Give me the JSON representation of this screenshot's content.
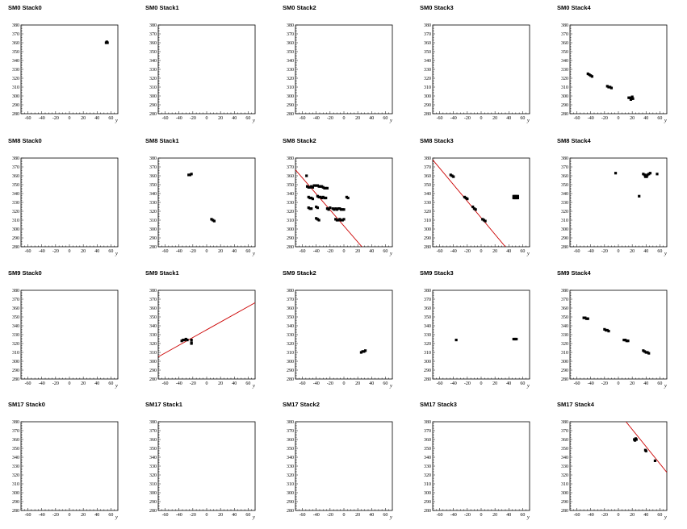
{
  "chart_data": {
    "type": "scatter",
    "layout": "grid",
    "rows": 4,
    "cols": 5,
    "xlabel": "y",
    "xlim": [
      -70,
      70
    ],
    "ylim": [
      280,
      380
    ],
    "x_ticks": [
      -60,
      -40,
      -20,
      0,
      20,
      40,
      60
    ],
    "y_ticks": [
      280,
      290,
      300,
      310,
      320,
      330,
      340,
      350,
      360,
      370,
      380
    ],
    "point_color": "#000000",
    "fit_color": "#cc0000",
    "panels": [
      {
        "title": "SM0 Stack0",
        "points": [
          [
            53,
            360
          ],
          [
            55,
            360
          ],
          [
            54,
            361
          ]
        ],
        "fit": null
      },
      {
        "title": "SM0 Stack1",
        "points": [],
        "fit": null
      },
      {
        "title": "SM0 Stack2",
        "points": [],
        "fit": null
      },
      {
        "title": "SM0 Stack3",
        "points": [],
        "fit": null
      },
      {
        "title": "SM0 Stack4",
        "points": [
          [
            -44,
            325
          ],
          [
            -42,
            324
          ],
          [
            -40,
            323
          ],
          [
            -38,
            322
          ],
          [
            -16,
            311
          ],
          [
            -14,
            310
          ],
          [
            -12,
            310
          ],
          [
            -10,
            309
          ],
          [
            15,
            298
          ],
          [
            17,
            298
          ],
          [
            19,
            297
          ],
          [
            21,
            297
          ],
          [
            20,
            299
          ],
          [
            18,
            296
          ]
        ],
        "fit": null
      },
      {
        "title": "SM8 Stack0",
        "points": [],
        "fit": null
      },
      {
        "title": "SM8 Stack1",
        "points": [
          [
            -26,
            361
          ],
          [
            -24,
            361
          ],
          [
            -22,
            362
          ],
          [
            7,
            311
          ],
          [
            9,
            310
          ],
          [
            11,
            309
          ]
        ],
        "fit": null
      },
      {
        "title": "SM8 Stack2",
        "points": [
          [
            -54,
            360
          ],
          [
            -53,
            348
          ],
          [
            -51,
            347
          ],
          [
            -49,
            347
          ],
          [
            -47,
            348
          ],
          [
            -45,
            347
          ],
          [
            -43,
            349
          ],
          [
            -40,
            349
          ],
          [
            -38,
            349
          ],
          [
            -36,
            348
          ],
          [
            -34,
            348
          ],
          [
            -32,
            348
          ],
          [
            -30,
            347
          ],
          [
            -28,
            346
          ],
          [
            -26,
            346
          ],
          [
            -24,
            346
          ],
          [
            -51,
            336
          ],
          [
            -49,
            335
          ],
          [
            -47,
            335
          ],
          [
            -45,
            334
          ],
          [
            -38,
            337
          ],
          [
            -36,
            336
          ],
          [
            -34,
            336
          ],
          [
            -32,
            335
          ],
          [
            -30,
            336
          ],
          [
            -28,
            335
          ],
          [
            -26,
            335
          ],
          [
            4,
            336
          ],
          [
            6,
            335
          ],
          [
            -51,
            324
          ],
          [
            -49,
            323
          ],
          [
            -47,
            323
          ],
          [
            -40,
            325
          ],
          [
            -38,
            324
          ],
          [
            -24,
            323
          ],
          [
            -22,
            322
          ],
          [
            -20,
            324
          ],
          [
            -16,
            323
          ],
          [
            -14,
            322
          ],
          [
            -12,
            323
          ],
          [
            -10,
            322
          ],
          [
            -8,
            323
          ],
          [
            -6,
            323
          ],
          [
            -4,
            322
          ],
          [
            -2,
            322
          ],
          [
            0,
            322
          ],
          [
            -40,
            312
          ],
          [
            -38,
            311
          ],
          [
            -36,
            310
          ],
          [
            -12,
            311
          ],
          [
            -10,
            310
          ],
          [
            -8,
            310
          ],
          [
            -6,
            311
          ],
          [
            -4,
            310
          ],
          [
            -2,
            310
          ],
          [
            0,
            311
          ]
        ],
        "fit": [
          [
            -70,
            366.7
          ],
          [
            26,
            280
          ]
        ]
      },
      {
        "title": "SM8 Stack3",
        "points": [
          [
            -44,
            361
          ],
          [
            -42,
            360
          ],
          [
            -40,
            359
          ],
          [
            -24,
            336
          ],
          [
            -22,
            335
          ],
          [
            -20,
            334
          ],
          [
            -12,
            325
          ],
          [
            -10,
            323
          ],
          [
            -8,
            322
          ],
          [
            2,
            311
          ],
          [
            4,
            310
          ],
          [
            6,
            309
          ],
          [
            47,
            337
          ],
          [
            49,
            337
          ],
          [
            51,
            337
          ],
          [
            53,
            337
          ],
          [
            47,
            335
          ],
          [
            49,
            335
          ],
          [
            51,
            335
          ],
          [
            53,
            335
          ]
        ],
        "fit": [
          [
            -70,
            378
          ],
          [
            35,
            280
          ]
        ]
      },
      {
        "title": "SM8 Stack4",
        "points": [
          [
            -4,
            363
          ],
          [
            36,
            362
          ],
          [
            38,
            361
          ],
          [
            40,
            360
          ],
          [
            42,
            361
          ],
          [
            44,
            362
          ],
          [
            46,
            363
          ],
          [
            39,
            359
          ],
          [
            41,
            359
          ],
          [
            56,
            362
          ],
          [
            30,
            337
          ]
        ],
        "fit": null
      },
      {
        "title": "SM9 Stack0",
        "points": [],
        "fit": null
      },
      {
        "title": "SM9 Stack1",
        "points": [
          [
            -36,
            323
          ],
          [
            -34,
            324
          ],
          [
            -32,
            324
          ],
          [
            -30,
            325
          ],
          [
            -28,
            324
          ],
          [
            -22,
            324
          ],
          [
            -22,
            321
          ],
          [
            -22,
            320
          ]
        ],
        "fit": [
          [
            -70,
            305
          ],
          [
            70,
            366
          ]
        ]
      },
      {
        "title": "SM9 Stack2",
        "points": [
          [
            25,
            310
          ],
          [
            27,
            311
          ],
          [
            29,
            311
          ],
          [
            31,
            312
          ]
        ],
        "fit": null
      },
      {
        "title": "SM9 Stack3",
        "points": [
          [
            -36,
            324
          ],
          [
            47,
            325
          ],
          [
            49,
            325
          ],
          [
            51,
            325
          ]
        ],
        "fit": null
      },
      {
        "title": "SM9 Stack4",
        "points": [
          [
            -50,
            349
          ],
          [
            -48,
            349
          ],
          [
            -46,
            348
          ],
          [
            -44,
            348
          ],
          [
            -20,
            336
          ],
          [
            -18,
            335
          ],
          [
            -16,
            335
          ],
          [
            -14,
            334
          ],
          [
            8,
            324
          ],
          [
            10,
            324
          ],
          [
            12,
            323
          ],
          [
            14,
            323
          ],
          [
            36,
            312
          ],
          [
            38,
            311
          ],
          [
            40,
            310
          ],
          [
            42,
            310
          ],
          [
            44,
            309
          ]
        ],
        "fit": null
      },
      {
        "title": "SM17 Stack0",
        "points": [],
        "fit": null
      },
      {
        "title": "SM17 Stack1",
        "points": [],
        "fit": null
      },
      {
        "title": "SM17 Stack2",
        "points": [],
        "fit": null
      },
      {
        "title": "SM17 Stack3",
        "points": [],
        "fit": null
      },
      {
        "title": "SM17 Stack4",
        "points": [
          [
            23,
            360
          ],
          [
            24,
            359
          ],
          [
            26,
            360
          ],
          [
            25,
            361
          ],
          [
            39,
            348
          ],
          [
            40,
            347
          ],
          [
            53,
            336
          ]
        ],
        "fit": [
          [
            11,
            380
          ],
          [
            70,
            323
          ]
        ]
      }
    ]
  }
}
